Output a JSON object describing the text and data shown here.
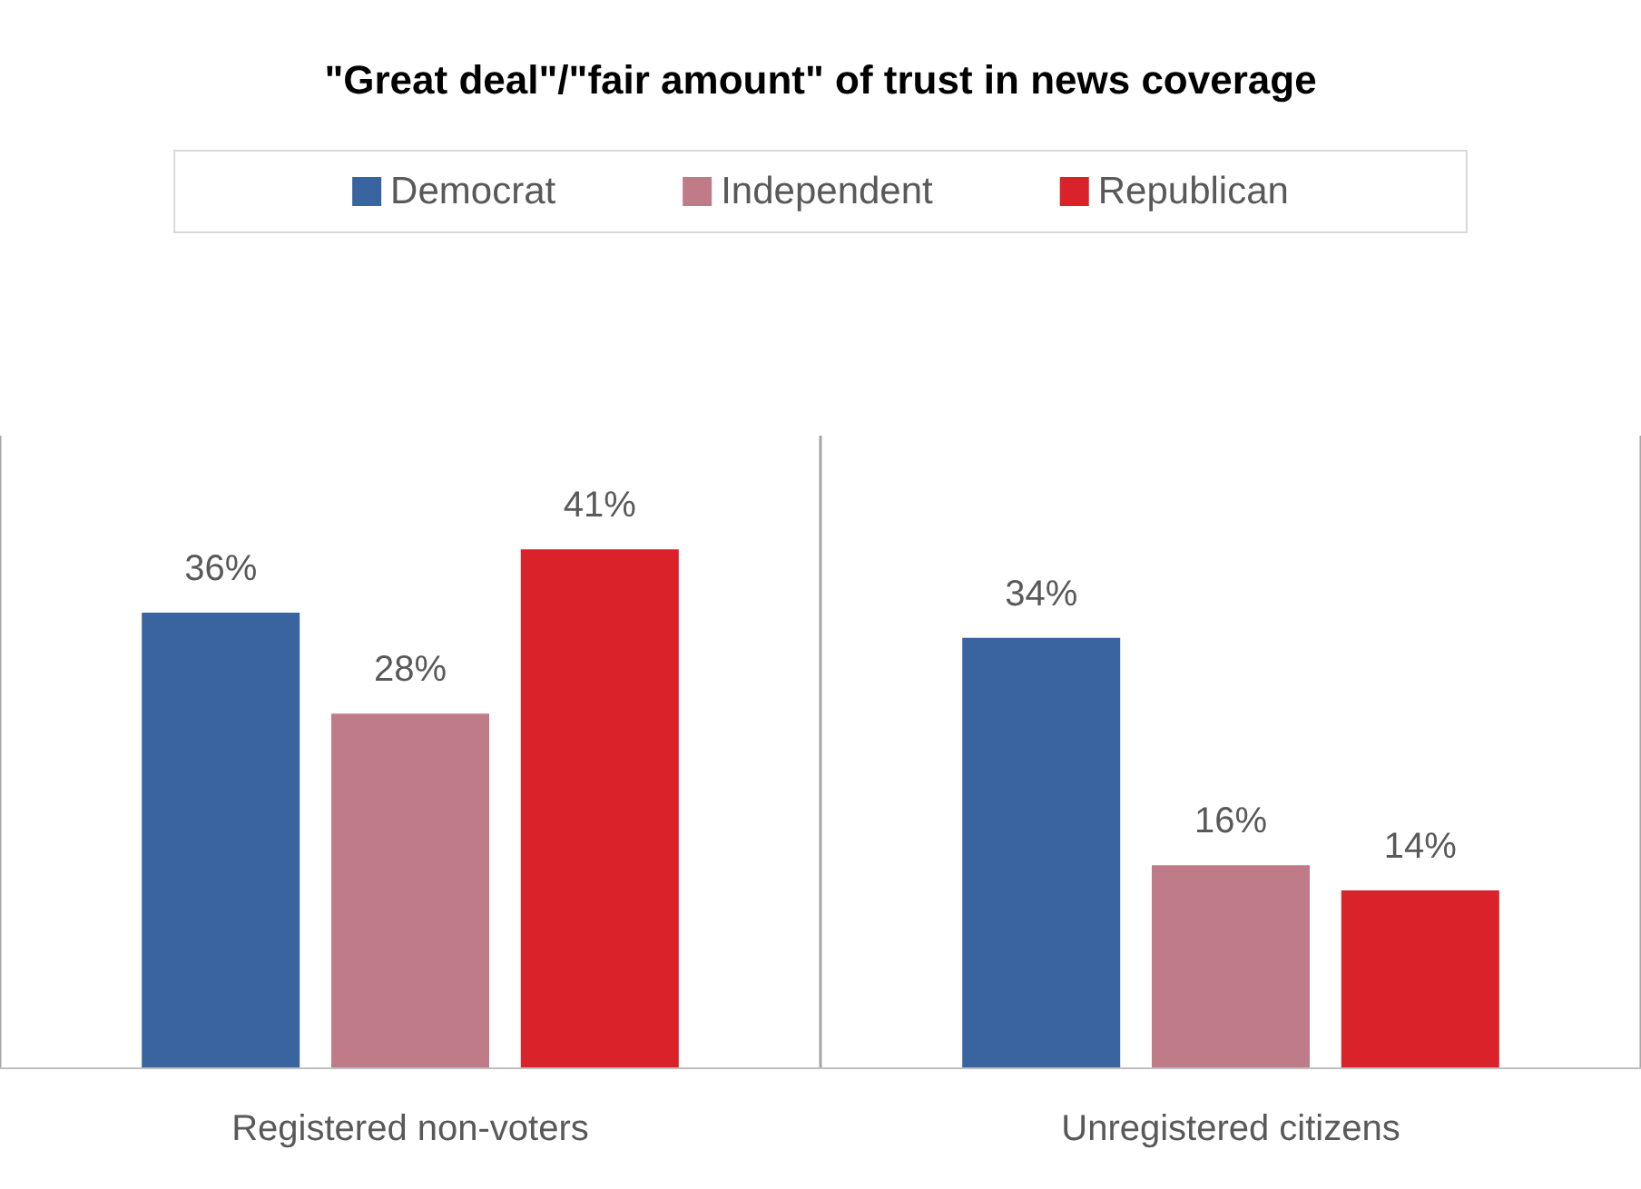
{
  "chart_data": {
    "type": "bar",
    "title": "\"Great deal\"/\"fair amount\" of trust in news coverage",
    "categories": [
      "Registered non-voters",
      "Unregistered citizens"
    ],
    "series": [
      {
        "name": "Democrat",
        "color": "#3a64a0",
        "values": [
          36,
          34
        ],
        "value_labels": [
          "36%",
          "34%"
        ]
      },
      {
        "name": "Independent",
        "color": "#c07b88",
        "values": [
          28,
          16
        ],
        "value_labels": [
          "28%",
          "16%"
        ]
      },
      {
        "name": "Republican",
        "color": "#d9222a",
        "values": [
          41,
          14
        ],
        "value_labels": [
          "41%",
          "14%"
        ]
      }
    ],
    "legend": "top",
    "grid": "x"
  }
}
